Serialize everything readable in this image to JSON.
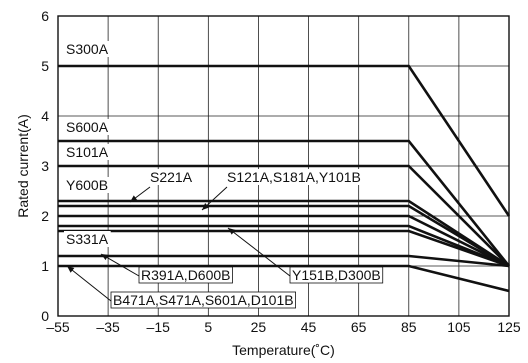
{
  "chart_data": {
    "type": "line",
    "title": "",
    "xlabel": "Temperature(˚C)",
    "ylabel": "Rated current(A)",
    "xlim": [
      -55,
      125
    ],
    "ylim": [
      0,
      6
    ],
    "xticks": [
      -55,
      -35,
      -15,
      5,
      25,
      45,
      65,
      85,
      105,
      125
    ],
    "yticks": [
      0,
      1,
      2,
      3,
      4,
      5,
      6
    ],
    "xtick_labels": [
      "–55",
      "–35",
      "–15",
      "5",
      "25",
      "45",
      "65",
      "85",
      "105",
      "125"
    ],
    "ytick_labels": [
      "0",
      "1",
      "2",
      "3",
      "4",
      "5",
      "6"
    ],
    "grid": true,
    "series": [
      {
        "name": "S300A",
        "x": [
          -55,
          85,
          125
        ],
        "y": [
          5.0,
          5.0,
          2.0
        ]
      },
      {
        "name": "S600A",
        "x": [
          -55,
          85,
          125
        ],
        "y": [
          3.5,
          3.5,
          1.0
        ]
      },
      {
        "name": "S101A",
        "x": [
          -55,
          85,
          125
        ],
        "y": [
          3.0,
          3.0,
          1.0
        ]
      },
      {
        "name": "Y600B",
        "x": [
          -55,
          85,
          125
        ],
        "y": [
          2.3,
          2.3,
          1.0
        ]
      },
      {
        "name": "S221A",
        "x": [
          -55,
          85,
          125
        ],
        "y": [
          2.2,
          2.2,
          1.0
        ]
      },
      {
        "name": "S121A,S181A,Y101B",
        "x": [
          -55,
          85,
          125
        ],
        "y": [
          2.0,
          2.0,
          1.0
        ]
      },
      {
        "name": "Y151B,D300B",
        "x": [
          -55,
          85,
          125
        ],
        "y": [
          1.8,
          1.8,
          1.0
        ]
      },
      {
        "name": "S331A",
        "x": [
          -55,
          85,
          125
        ],
        "y": [
          1.7,
          1.7,
          1.0
        ]
      },
      {
        "name": "R391A,D600B",
        "x": [
          -55,
          85,
          125
        ],
        "y": [
          1.2,
          1.2,
          1.0
        ]
      },
      {
        "name": "B471A,S471A,S601A,D101B",
        "x": [
          -55,
          85,
          125
        ],
        "y": [
          1.0,
          1.0,
          0.5
        ]
      }
    ],
    "annotations": [
      {
        "text": "S300A",
        "series": "S300A"
      },
      {
        "text": "S600A",
        "series": "S600A"
      },
      {
        "text": "S101A",
        "series": "S101A"
      },
      {
        "text": "Y600B",
        "series": "Y600B"
      },
      {
        "text": "S221A",
        "series": "S221A"
      },
      {
        "text": "S121A,S181A,Y101B",
        "series": "S121A,S181A,Y101B"
      },
      {
        "text": "S331A",
        "series": "S331A"
      },
      {
        "text": "Y151B,D300B",
        "series": "Y151B,D300B"
      },
      {
        "text": "R391A,D600B",
        "series": "R391A,D600B"
      },
      {
        "text": "B471A,S471A,S601A,D101B",
        "series": "B471A,S471A,S601A,D101B"
      }
    ]
  }
}
